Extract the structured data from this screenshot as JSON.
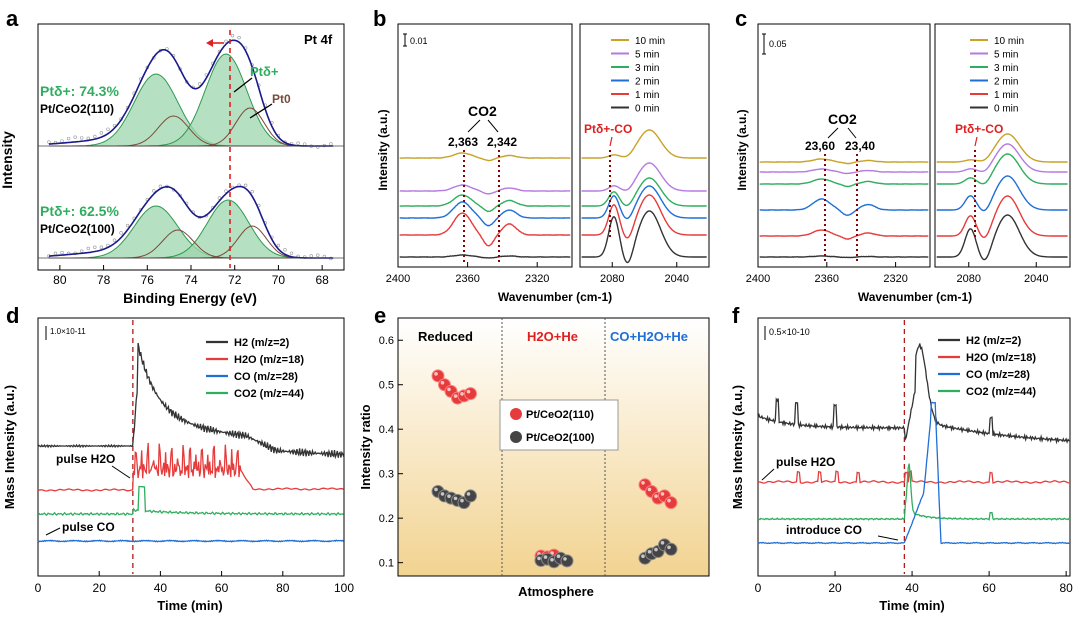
{
  "colors": {
    "red": "#e63b3b",
    "green": "#2fae5f",
    "blue": "#1f6fd6",
    "black": "#333333",
    "gold": "#c9a227",
    "purple": "#b57be0",
    "darkred": "#8b0000",
    "greenfill": "#9ed6ad",
    "envelope": "#1a1a8c"
  },
  "chart_data": [
    {
      "panel": "a",
      "type": "line",
      "label": "Pt 4f",
      "xlabel": "Binding Energy (eV)",
      "ylabel": "Intensity",
      "xlim": [
        81,
        67
      ],
      "xticks": [
        "80",
        "78",
        "76",
        "74",
        "72",
        "70",
        "68"
      ],
      "annotations": {
        "ptdelta": "Ptδ+",
        "pt0": "Pt0"
      },
      "series": [
        {
          "name": "Pt/CeO2(110)",
          "ratio_text": "Ptδ+: 74.3%",
          "sample_text": "Pt/CeO2(110)",
          "peaks_eV": [
            75.6,
            72.4,
            74.8,
            71.3
          ],
          "share_ptdelta_pct": 74.3
        },
        {
          "name": "Pt/CeO2(100)",
          "ratio_text": "Ptδ+: 62.5%",
          "sample_text": "Pt/CeO2(100)",
          "peaks_eV": [
            75.6,
            72.3,
            74.6,
            71.2
          ],
          "share_ptdelta_pct": 62.5
        }
      ]
    },
    {
      "panel": "b",
      "type": "line",
      "xlabel": "Wavenumber (cm-1)",
      "ylabel": "Intensity (a.u.)",
      "scale": "0.01",
      "left_xlim": [
        2400,
        2300
      ],
      "left_xticks": [
        "2400",
        "2360",
        "2320"
      ],
      "right_xlim": [
        2100,
        2020
      ],
      "right_xticks": [
        "2080",
        "2040"
      ],
      "co2": "CO2",
      "co2_peaks": [
        "2,363",
        "2,342"
      ],
      "ptco": "Ptδ+-CO",
      "legend": [
        "10 min",
        "5 min",
        "3 min",
        "2 min",
        "1 min",
        "0 min"
      ]
    },
    {
      "panel": "c",
      "type": "line",
      "xlabel": "Wavenumber (cm-1)",
      "ylabel": "Intensity (a.u.)",
      "scale": "0.05",
      "left_xlim": [
        2400,
        2300
      ],
      "left_xticks": [
        "2400",
        "2360",
        "2320"
      ],
      "right_xlim": [
        2100,
        2020
      ],
      "right_xticks": [
        "2080",
        "2040"
      ],
      "co2": "CO2",
      "co2_peaks": [
        "23,60",
        "23,40"
      ],
      "ptco": "Ptδ+-CO",
      "legend": [
        "10 min",
        "5 min",
        "3 min",
        "2 min",
        "1 min",
        "0 min"
      ]
    },
    {
      "panel": "d",
      "type": "line",
      "xlabel": "Time (min)",
      "ylabel": "Mass Intensity (a.u.)",
      "xlim": [
        0,
        100
      ],
      "xticks": [
        "0",
        "20",
        "40",
        "60",
        "80",
        "100"
      ],
      "scale": "1.0×10-11",
      "event_time_min": 31,
      "series": [
        {
          "name": "H2 (m/z=2)",
          "color": "#333333"
        },
        {
          "name": "H2O (m/z=18)",
          "color": "#e63b3b"
        },
        {
          "name": "CO (m/z=28)",
          "color": "#1f6fd6"
        },
        {
          "name": "CO2 (m/z=44)",
          "color": "#2fae5f"
        }
      ],
      "annotations": {
        "pulse_h2o": "pulse H2O",
        "pulse_co": "pulse CO"
      }
    },
    {
      "panel": "e",
      "type": "scatter",
      "xlabel": "Atmosphere",
      "ylabel": "Intensity ratio",
      "ylim": [
        0.07,
        0.65
      ],
      "yticks": [
        "0.1",
        "0.2",
        "0.3",
        "0.4",
        "0.5",
        "0.6"
      ],
      "regions": [
        "Reduced",
        "H2O+He",
        "CO+H2O+He"
      ],
      "series": [
        {
          "name": "Pt/CeO2(110)",
          "color": "#e63b3b",
          "points": [
            [
              0,
              0.52
            ],
            [
              0,
              0.5
            ],
            [
              0,
              0.485
            ],
            [
              0,
              0.47
            ],
            [
              0,
              0.475
            ],
            [
              0,
              0.48
            ],
            [
              1,
              0.115
            ],
            [
              1,
              0.113
            ],
            [
              1,
              0.117
            ],
            [
              2,
              0.275
            ],
            [
              2,
              0.26
            ],
            [
              2,
              0.245
            ],
            [
              2,
              0.25
            ],
            [
              2,
              0.235
            ]
          ]
        },
        {
          "name": "Pt/CeO2(100)",
          "color": "#444444",
          "points": [
            [
              0,
              0.26
            ],
            [
              0,
              0.25
            ],
            [
              0,
              0.245
            ],
            [
              0,
              0.24
            ],
            [
              0,
              0.235
            ],
            [
              0,
              0.25
            ],
            [
              1,
              0.105
            ],
            [
              1,
              0.108
            ],
            [
              1,
              0.102
            ],
            [
              1,
              0.11
            ],
            [
              1,
              0.104
            ],
            [
              2,
              0.11
            ],
            [
              2,
              0.12
            ],
            [
              2,
              0.125
            ],
            [
              2,
              0.14
            ],
            [
              2,
              0.13
            ]
          ]
        }
      ]
    },
    {
      "panel": "f",
      "type": "line",
      "xlabel": "Time (min)",
      "ylabel": "Mass Intensity (a.u.)",
      "xlim": [
        0,
        81
      ],
      "xticks": [
        "0",
        "20",
        "40",
        "60",
        "80"
      ],
      "scale": "0.5×10-10",
      "event_time_min": 38,
      "series": [
        {
          "name": "H2 (m/z=2)",
          "color": "#333333"
        },
        {
          "name": "H2O (m/z=18)",
          "color": "#e63b3b"
        },
        {
          "name": "CO (m/z=28)",
          "color": "#1f6fd6"
        },
        {
          "name": "CO2 (m/z=44)",
          "color": "#2fae5f"
        }
      ],
      "annotations": {
        "pulse_h2o": "pulse H2O",
        "introduce_co": "introduce CO"
      }
    }
  ]
}
